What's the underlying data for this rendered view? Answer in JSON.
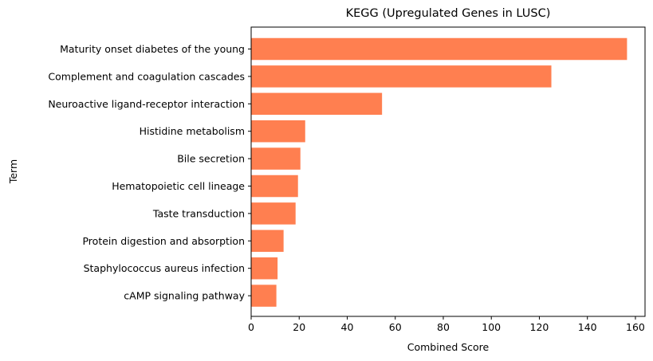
{
  "chart_data": {
    "type": "bar",
    "orientation": "horizontal",
    "title": "KEGG (Upregulated Genes in LUSC)",
    "xlabel": "Combined Score",
    "ylabel": "Term",
    "categories": [
      "Maturity onset diabetes of the young",
      "Complement and coagulation cascades",
      "Neuroactive ligand-receptor interaction",
      "Histidine metabolism",
      "Bile secretion",
      "Hematopoietic cell lineage",
      "Taste transduction",
      "Protein digestion and absorption",
      "Staphylococcus aureus infection",
      "cAMP signaling pathway"
    ],
    "values": [
      156.5,
      125,
      54.5,
      22.5,
      20.5,
      19.5,
      18.5,
      13.5,
      11,
      10.5
    ],
    "xlim": [
      0,
      164
    ],
    "xticks": [
      0,
      20,
      40,
      60,
      80,
      100,
      120,
      140,
      160
    ],
    "bar_color": "#ff7f50",
    "grid": false,
    "legend": "none"
  }
}
